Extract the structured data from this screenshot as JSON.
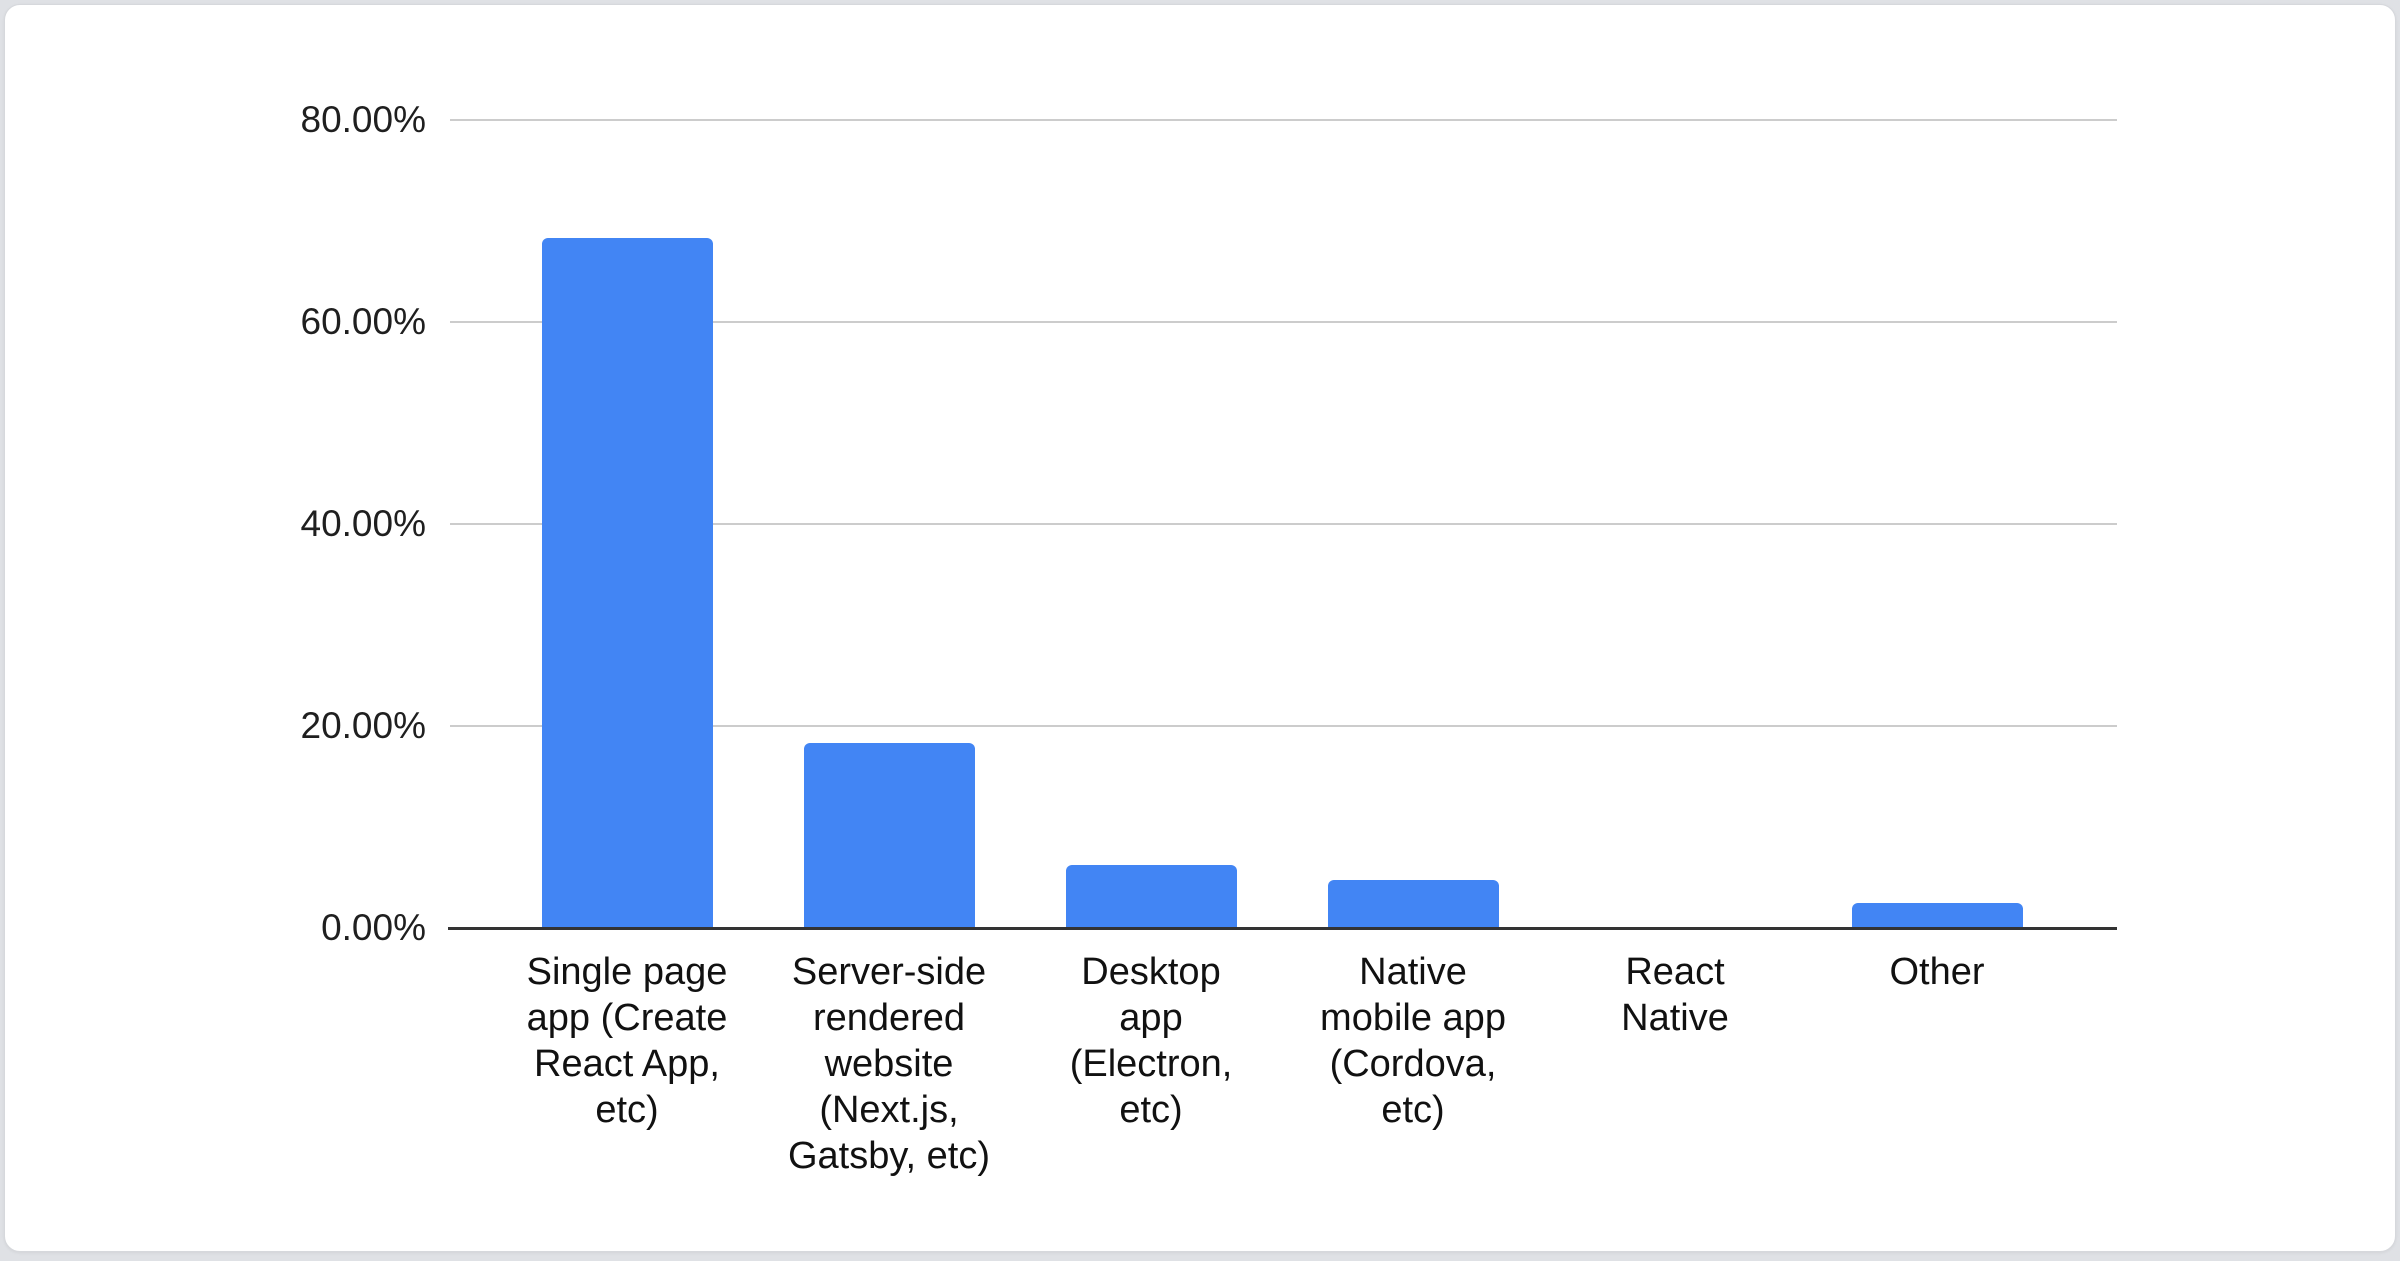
{
  "card": {
    "background_color": "#ffffff",
    "border_color": "#d6d8dc"
  },
  "chart_data": {
    "type": "bar",
    "title": "",
    "xlabel": "",
    "ylabel": "",
    "legend": "none",
    "grid": true,
    "ylim": [
      0,
      80
    ],
    "y_tick_values": [
      80,
      60,
      40,
      20,
      0
    ],
    "y_ticks": [
      "80.00%",
      "60.00%",
      "40.00%",
      "20.00%",
      "0.00%"
    ],
    "categories": [
      "Single page app (Create React App, etc)",
      "Server-side rendered website (Next.js, Gatsby, etc)",
      "Desktop app (Electron, etc)",
      "Native mobile app (Cordova, etc)",
      "React Native",
      "Other"
    ],
    "categories_wrapped": [
      "Single page\napp (Create\nReact App,\netc)",
      "Server-side\nrendered\nwebsite\n(Next.js,\nGatsby, etc)",
      "Desktop\napp\n(Electron,\netc)",
      "Native\nmobile app\n(Cordova,\netc)",
      "React\nNative",
      "Other"
    ],
    "values": [
      68.3,
      18.3,
      6.2,
      4.8,
      0,
      2.5
    ],
    "unit": "%",
    "bar_color": "#4285f4",
    "gridline_color": "#cccccc",
    "axis_line_color": "#333333",
    "tick_label_color": "#1f1f1f",
    "category_label_color": "#111111"
  }
}
